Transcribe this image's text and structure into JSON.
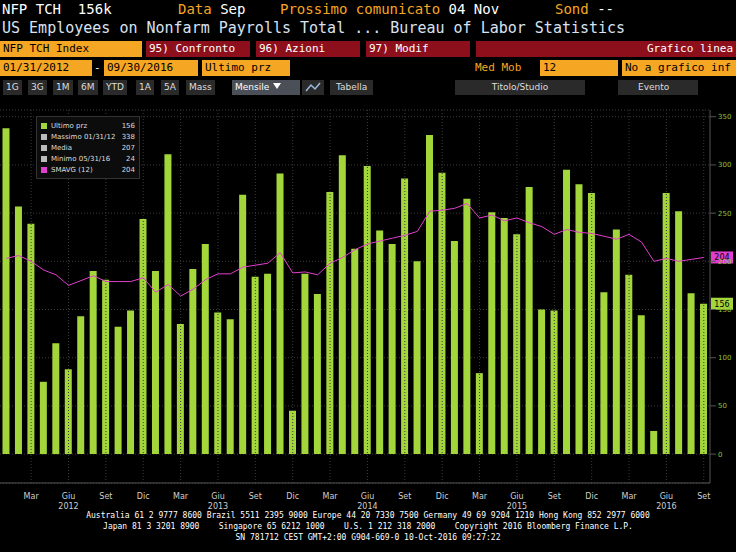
{
  "header": {
    "ticker": "NFP TCH",
    "last": "156k",
    "data_label": "Data",
    "data_value": "Sep",
    "next_label": "Prossimo comunicato",
    "next_value": "04 Nov",
    "survey_label": "Sond",
    "survey_value": "--",
    "description": "US Employees on Nonfarm Payrolls Total ... Bureau of Labor Statistics"
  },
  "toolbar": {
    "security": "NFP TCH Index",
    "buttons": [
      "95) Confronto",
      "96) Azioni",
      "97) Modif"
    ],
    "chart_type": "Grafico linea"
  },
  "settings_row": {
    "start": "01/31/2012",
    "separator": "-",
    "end": "09/30/2016",
    "field": "Ultimo prz",
    "ma_label": "Med Mob",
    "ma_period": "12",
    "lower": "No a grafico inf"
  },
  "period_row": {
    "periods": [
      "1G",
      "3G",
      "1M",
      "6M",
      "YTD",
      "1A",
      "5A",
      "Mass"
    ],
    "frequency": "Mensile",
    "table": "Tabella",
    "study": "Titolo/Studio",
    "event": "Evento"
  },
  "footer": [
    "Australia 61 2 9777 8600 Brazil 5511 2395 9000 Europe 44 20 7330 7500 Germany 49 69 9204 1210 Hong Kong 852 2977 6000",
    "Japan 81 3 3201 8900    Singapore 65 6212 1000    U.S. 1 212 318 2000    Copyright 2016 Bloomberg Finance L.P.",
    "SN 781712 CEST GMT+2:00 G904-669-0 10-Oct-2016 09:27:22"
  ],
  "chart_data": {
    "type": "bar",
    "categories": [
      null,
      null,
      "Mar",
      null,
      null,
      "Giu",
      null,
      null,
      "Set",
      null,
      null,
      "Dic",
      null,
      null,
      "Mar",
      null,
      null,
      "Giu",
      null,
      null,
      "Set",
      null,
      null,
      "Dic",
      null,
      null,
      "Mar",
      null,
      null,
      "Giu",
      null,
      null,
      "Set",
      null,
      null,
      "Dic",
      null,
      null,
      "Mar",
      null,
      null,
      "Giu",
      null,
      null,
      "Set",
      null,
      null,
      "Dic",
      null,
      null,
      "Mar",
      null,
      null,
      "Giu",
      null,
      null,
      "Set"
    ],
    "category_groups": [
      null,
      null,
      null,
      null,
      null,
      2012,
      null,
      null,
      null,
      null,
      null,
      null,
      null,
      null,
      null,
      null,
      null,
      2013,
      null,
      null,
      null,
      null,
      null,
      null,
      null,
      null,
      null,
      null,
      null,
      2014,
      null,
      null,
      null,
      null,
      null,
      null,
      null,
      null,
      null,
      null,
      null,
      2015,
      null,
      null,
      null,
      null,
      null,
      null,
      null,
      null,
      null,
      null,
      null,
      2016,
      null,
      null,
      null
    ],
    "series": [
      {
        "name": "Ultimo prz",
        "type": "bar",
        "color": "#a3d63b",
        "values": [
          338,
          257,
          239,
          75,
          115,
          88,
          143,
          190,
          181,
          132,
          149,
          244,
          190,
          311,
          135,
          192,
          218,
          147,
          140,
          269,
          184,
          187,
          291,
          45,
          187,
          166,
          272,
          310,
          213,
          299,
          232,
          218,
          286,
          200,
          331,
          292,
          221,
          265,
          84,
          251,
          245,
          228,
          277,
          150,
          149,
          295,
          280,
          271,
          168,
          233,
          186,
          144,
          24,
          271,
          252,
          167,
          156
        ]
      },
      {
        "name": "SMAVG (12)",
        "type": "line",
        "color": "#e23fd0",
        "values": [
          203,
          206,
          200,
          191,
          186,
          175,
          180,
          185,
          179,
          179,
          179,
          183,
          168,
          176,
          164,
          171,
          181,
          187,
          187,
          194,
          196,
          198,
          209,
          188,
          189,
          186,
          198,
          204,
          212,
          218,
          221,
          224,
          227,
          231,
          252,
          253,
          255,
          260,
          245,
          248,
          242,
          245,
          240,
          236,
          228,
          233,
          230,
          229,
          226,
          223,
          228,
          220,
          200,
          203,
          200,
          202,
          204
        ]
      }
    ],
    "stats": [
      {
        "label": "Ultimo prz",
        "value": 156,
        "color": "#a3d63b"
      },
      {
        "label": "Massimo 01/31/12",
        "value": 338,
        "color": "#bbbbbb"
      },
      {
        "label": "Media",
        "value": 207,
        "color": "#bbbbbb"
      },
      {
        "label": "Minimo 05/31/16",
        "value": 24,
        "color": "#bbbbbb"
      },
      {
        "label": "SMAVG (12)",
        "value": 204,
        "color": "#e23fd0"
      }
    ],
    "ylim": [
      -30,
      357
    ],
    "yticks": [
      0,
      50,
      100,
      150,
      200,
      250,
      300,
      350
    ],
    "grid": true
  }
}
